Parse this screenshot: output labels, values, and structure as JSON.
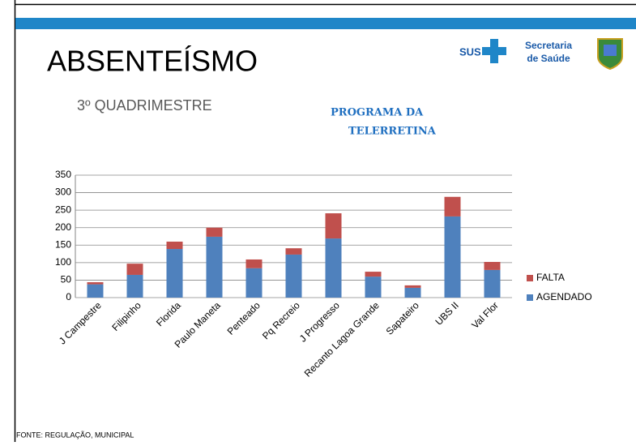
{
  "slide": {
    "title": "ABSENTEÍSMO",
    "subtitle": "3º QUADRIMESTRE",
    "program": [
      "PROGRAMA DA",
      "TELERRETINA"
    ],
    "source": "FONTE: REGULAÇÃO, MUNICIPAL",
    "logo": {
      "sus": "SUS",
      "line1": "Secretaria",
      "line2": "de Saúde"
    }
  },
  "chart_data": {
    "type": "stacked_bar",
    "categories": [
      "J Campestre",
      "Filipinho",
      "Florida",
      "Paulo Maneta",
      "Penteado",
      "Pq Recreio",
      "J Progresso",
      "Recanto Lagoa Grande",
      "Sapateiro",
      "UBS II",
      "Val Flor"
    ],
    "series": [
      {
        "name": "AGENDADO",
        "color": "#4f81bd",
        "values": [
          38,
          65,
          139,
          174,
          84,
          123,
          169,
          60,
          28,
          232,
          79
        ]
      },
      {
        "name": "FALTA",
        "color": "#c0504d",
        "values": [
          6,
          32,
          21,
          26,
          25,
          18,
          72,
          14,
          7,
          56,
          23
        ]
      }
    ],
    "ylim": [
      0,
      350
    ],
    "yticks": [
      0,
      50,
      100,
      150,
      200,
      250,
      300,
      350
    ],
    "grid": true,
    "legend": "right"
  }
}
